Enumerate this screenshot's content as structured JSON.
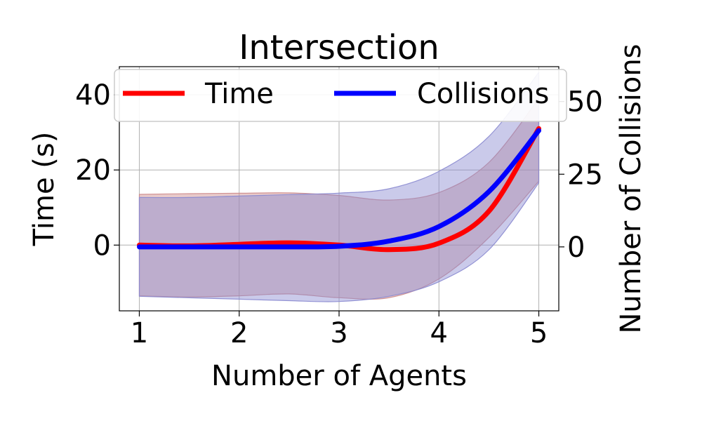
{
  "chart_data": {
    "type": "line",
    "title": "Intersection",
    "xlabel": "Number of Agents",
    "ylabel_left": "Time (s)",
    "ylabel_right": "Number of Collisions",
    "xlim": [
      0.8,
      5.2
    ],
    "ylim_left": [
      -17.5,
      47.5
    ],
    "ylim_right": [
      -22,
      62
    ],
    "x_ticks": [
      1,
      2,
      3,
      4,
      5
    ],
    "y_ticks_left": [
      0,
      20,
      40
    ],
    "y_ticks_right": [
      0,
      25,
      50
    ],
    "grid": true,
    "legend_placement": "top-center",
    "series": [
      {
        "name": "Time",
        "axis": "left",
        "color": "#ff0000",
        "x": [
          1.0,
          1.5,
          2.0,
          2.5,
          3.0,
          3.5,
          4.0,
          4.5,
          5.0
        ],
        "y": [
          0.0,
          -0.2,
          0.2,
          0.6,
          0.0,
          -1.2,
          0.5,
          9.0,
          31.0
        ],
        "band_lower": [
          -13.5,
          -13.8,
          -13.5,
          -13.0,
          -14.0,
          -14.0,
          -9.0,
          2.0,
          17.0
        ],
        "band_upper": [
          13.5,
          13.7,
          13.8,
          13.9,
          13.2,
          12.0,
          14.0,
          22.0,
          39.0
        ]
      },
      {
        "name": "Collisions",
        "axis": "right",
        "color": "#0000ff",
        "x": [
          1.0,
          1.5,
          2.0,
          2.5,
          3.0,
          3.5,
          4.0,
          4.5,
          5.0
        ],
        "y": [
          0.0,
          0.0,
          0.0,
          0.0,
          0.2,
          2.0,
          7.0,
          19.0,
          40.0
        ],
        "band_lower": [
          -17.0,
          -17.5,
          -18.0,
          -18.5,
          -18.8,
          -17.0,
          -12.0,
          -1.0,
          22.0
        ],
        "band_upper": [
          17.0,
          17.0,
          17.5,
          18.0,
          18.5,
          20.0,
          26.0,
          38.0,
          60.0
        ]
      }
    ]
  },
  "colors": {
    "band_fill_red": "#cd8a8a",
    "band_fill_blue": "#8a8ad0",
    "grid": "#b0b0b0"
  }
}
